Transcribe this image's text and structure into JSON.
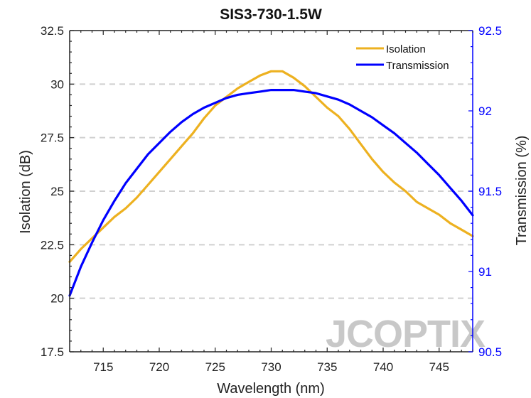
{
  "chart_data": {
    "type": "line",
    "title": "SIS3-730-1.5W",
    "xlabel": "Wavelength (nm)",
    "ylabel": "Isolation (dB)",
    "y2label": "Transmission (%)",
    "xlim": [
      712,
      748
    ],
    "ylim": [
      17.5,
      32.5
    ],
    "y2lim": [
      90.5,
      92.5
    ],
    "xticks": [
      "715",
      "720",
      "725",
      "730",
      "735",
      "740",
      "745"
    ],
    "xtick_values": [
      715,
      720,
      725,
      730,
      735,
      740,
      745
    ],
    "yticks": [
      "17.5",
      "20",
      "22.5",
      "25",
      "27.5",
      "30",
      "32.5"
    ],
    "ytick_values": [
      17.5,
      20,
      22.5,
      25,
      27.5,
      30,
      32.5
    ],
    "y2ticks": [
      "90.5",
      "91",
      "91.5",
      "92",
      "92.5"
    ],
    "y2tick_values": [
      90.5,
      91,
      91.5,
      92,
      92.5
    ],
    "grid": "horizontal-dashed",
    "legend_position": "top-right",
    "series": [
      {
        "name": "Isolation",
        "axis": "left",
        "color": "#EDB120",
        "x": [
          712,
          713,
          714,
          715,
          716,
          717,
          718,
          719,
          720,
          721,
          722,
          723,
          724,
          725,
          726,
          727,
          728,
          729,
          730,
          731,
          732,
          733,
          734,
          735,
          736,
          737,
          738,
          739,
          740,
          741,
          742,
          743,
          744,
          745,
          746,
          747,
          748
        ],
        "y": [
          21.7,
          22.3,
          22.8,
          23.3,
          23.8,
          24.2,
          24.7,
          25.3,
          25.9,
          26.5,
          27.1,
          27.7,
          28.4,
          29.0,
          29.4,
          29.8,
          30.1,
          30.4,
          30.6,
          30.6,
          30.3,
          29.9,
          29.4,
          28.9,
          28.5,
          27.9,
          27.2,
          26.5,
          25.9,
          25.4,
          25.0,
          24.5,
          24.2,
          23.9,
          23.5,
          23.2,
          22.9
        ]
      },
      {
        "name": "Transmission",
        "axis": "right",
        "color": "#0000FF",
        "x": [
          712,
          713,
          714,
          715,
          716,
          717,
          718,
          719,
          720,
          721,
          722,
          723,
          724,
          725,
          726,
          727,
          728,
          729,
          730,
          731,
          732,
          733,
          734,
          735,
          736,
          737,
          738,
          739,
          740,
          741,
          742,
          743,
          744,
          745,
          746,
          747,
          748
        ],
        "y": [
          90.85,
          91.03,
          91.18,
          91.32,
          91.44,
          91.55,
          91.64,
          91.73,
          91.8,
          91.87,
          91.93,
          91.98,
          92.02,
          92.05,
          92.08,
          92.1,
          92.11,
          92.12,
          92.13,
          92.13,
          92.13,
          92.12,
          92.11,
          92.09,
          92.07,
          92.04,
          92.0,
          91.96,
          91.91,
          91.86,
          91.8,
          91.74,
          91.67,
          91.6,
          91.52,
          91.44,
          91.35
        ]
      }
    ],
    "legend": [
      "Isolation",
      "Transmission"
    ],
    "colors": {
      "left_axis": "#222222",
      "right_axis": "#0000FF",
      "grid": "#d0d0d0"
    }
  },
  "watermark": "JCOPTIX"
}
